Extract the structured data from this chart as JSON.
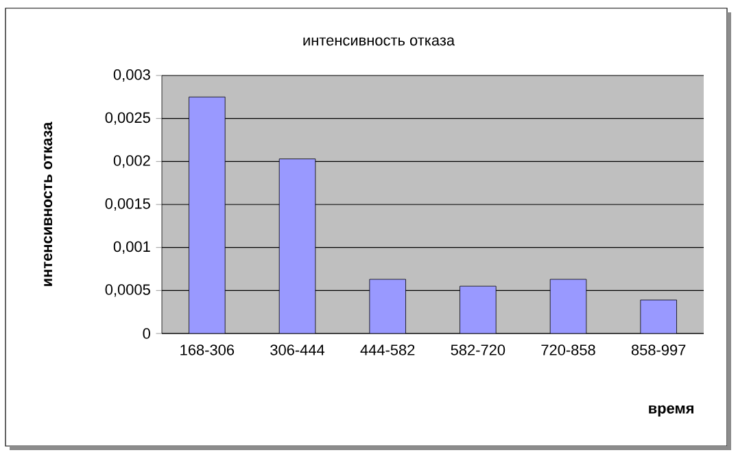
{
  "chart_data": {
    "type": "bar",
    "title": "интенсивность отказа",
    "xlabel": "время",
    "ylabel": "интенсивность  отказа",
    "categories": [
      "168-306",
      "306-444",
      "444-582",
      "582-720",
      "720-858",
      "858-997"
    ],
    "values": [
      0.00275,
      0.00203,
      0.00063,
      0.00055,
      0.00063,
      0.00039
    ],
    "color": "#9999ff",
    "ylim": [
      0,
      0.003
    ],
    "yticks": [
      0,
      {
        "value": 0.0005,
        "label": "0,0005"
      },
      {
        "value": 0.001,
        "label": "0,001"
      },
      {
        "value": 0.0015,
        "label": "0,0015"
      },
      {
        "value": 0.002,
        "label": "0,002"
      },
      {
        "value": 0.0025,
        "label": "0,0025"
      },
      {
        "value": 0.003,
        "label": "0,003"
      }
    ],
    "grid": "y"
  }
}
